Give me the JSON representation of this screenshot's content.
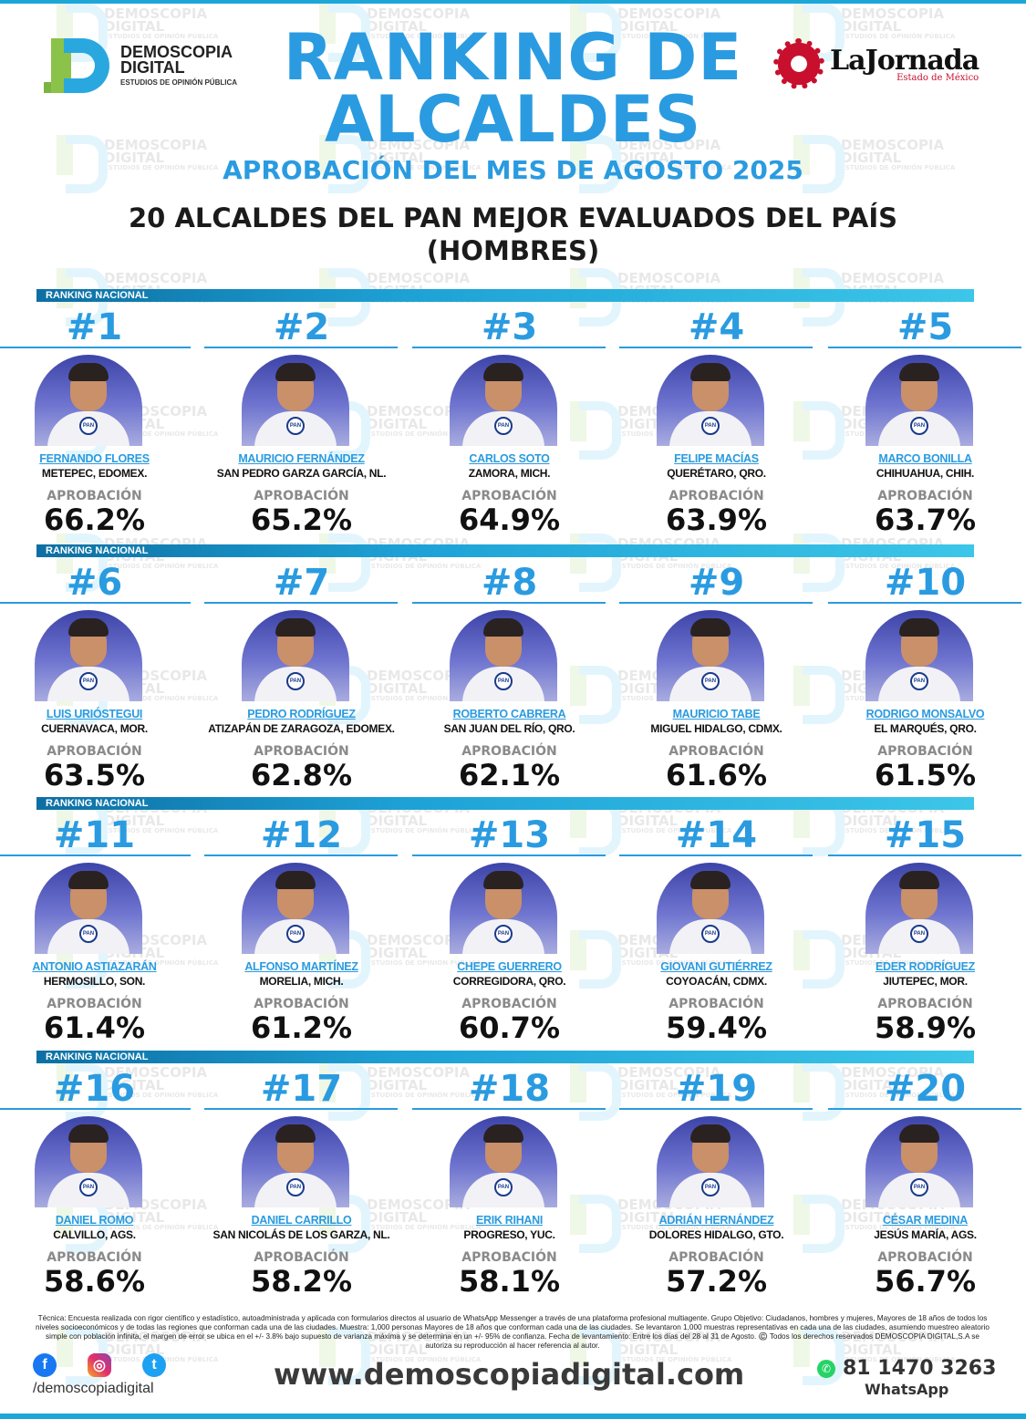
{
  "header": {
    "brand_name_line1": "DEMOSCOPIA",
    "brand_name_line2": "DIGITAL",
    "brand_tagline": "ESTUDIOS DE OPINIÓN PÚBLICA",
    "partner_name": "LaJornada",
    "partner_region": "Estado de México",
    "title_line1": "RANKING DE",
    "title_line2": "ALCALDES",
    "subtitle": "APROBACIÓN DEL MES DE AGOSTO 2025",
    "heading_line1": "20 ALCALDES DEL PAN MEJOR EVALUADOS DEL PAÍS",
    "heading_line2": "(HOMBRES)"
  },
  "section_label": "RANKING NACIONAL",
  "approval_label": "APROBACIÓN",
  "party_badge": "PAN",
  "mayors": [
    {
      "rank": "#1",
      "name": "FERNANDO FLORES",
      "city": "METEPEC, EDOMEX.",
      "approval": "66.2%"
    },
    {
      "rank": "#2",
      "name": "MAURICIO FERNÁNDEZ",
      "city": "SAN PEDRO GARZA GARCÍA, NL.",
      "approval": "65.2%"
    },
    {
      "rank": "#3",
      "name": "CARLOS SOTO",
      "city": "ZAMORA, MICH.",
      "approval": "64.9%"
    },
    {
      "rank": "#4",
      "name": "FELIPE MACÍAS",
      "city": "QUERÉTARO, QRO.",
      "approval": "63.9%"
    },
    {
      "rank": "#5",
      "name": "MARCO BONILLA",
      "city": "CHIHUAHUA, CHIH.",
      "approval": "63.7%"
    },
    {
      "rank": "#6",
      "name": "LUIS URIÓSTEGUI",
      "city": "CUERNAVACA, MOR.",
      "approval": "63.5%"
    },
    {
      "rank": "#7",
      "name": "PEDRO RODRÍGUEZ",
      "city": "ATIZAPÁN DE ZARAGOZA, EDOMEX.",
      "approval": "62.8%"
    },
    {
      "rank": "#8",
      "name": "ROBERTO CABRERA",
      "city": "SAN JUAN DEL RÍO, QRO.",
      "approval": "62.1%"
    },
    {
      "rank": "#9",
      "name": "MAURICIO TABE",
      "city": "MIGUEL HIDALGO, CDMX.",
      "approval": "61.6%"
    },
    {
      "rank": "#10",
      "name": "RODRIGO MONSALVO",
      "city": "EL MARQUÉS, QRO.",
      "approval": "61.5%"
    },
    {
      "rank": "#11",
      "name": "ANTONIO ASTIAZARÁN",
      "city": "HERMOSILLO, SON.",
      "approval": "61.4%"
    },
    {
      "rank": "#12",
      "name": "ALFONSO MARTÍNEZ",
      "city": "MORELIA, MICH.",
      "approval": "61.2%"
    },
    {
      "rank": "#13",
      "name": "CHEPE GUERRERO",
      "city": "CORREGIDORA, QRO.",
      "approval": "60.7%"
    },
    {
      "rank": "#14",
      "name": "GIOVANI GUTIÉRREZ",
      "city": "COYOACÁN, CDMX.",
      "approval": "59.4%"
    },
    {
      "rank": "#15",
      "name": "EDER RODRÍGUEZ",
      "city": "JIUTEPEC, MOR.",
      "approval": "58.9%"
    },
    {
      "rank": "#16",
      "name": "DANIEL ROMO",
      "city": "CALVILLO, AGS.",
      "approval": "58.6%"
    },
    {
      "rank": "#17",
      "name": "DANIEL CARRILLO",
      "city": "SAN NICOLÁS DE LOS GARZA, NL.",
      "approval": "58.2%"
    },
    {
      "rank": "#18",
      "name": "ERIK RIHANI",
      "city": "PROGRESO, YUC.",
      "approval": "58.1%"
    },
    {
      "rank": "#19",
      "name": "ADRIÁN HERNÁNDEZ",
      "city": "DOLORES HIDALGO, GTO.",
      "approval": "57.2%"
    },
    {
      "rank": "#20",
      "name": "CÉSAR MEDINA",
      "city": "JESÚS MARÍA, AGS.",
      "approval": "56.7%"
    }
  ],
  "footer": {
    "technical_note": "Técnica: Encuesta realizada con rigor científico y estadístico, autoadministrada y aplicada con formularios directos al usuario de WhatsApp Messenger a través de una plataforma profesional multiagente. Grupo Objetivo: Ciudadanos, hombres y mujeres, Mayores de 18 años de todos los niveles socioeconómicos y de todas las regiones que conforman cada una de las ciudades. Muestra: 1,000 personas Mayores de 18 años que conforman cada una de las ciudades. Se levantaron 1,000 muestras representativas en cada una de las ciudades, asumiendo muestreo aleatorio simple con población infinita, el margen de error se ubica en el +/- 3.8% bajo supuesto de varianza máxima y se determina en un +/- 95% de confianza. Fecha de levantamiento: Entre los días del 28 al 31 de Agosto. ©️ Todos los derechos reservados DEMOSCOPIA DIGITAL,S.A se autoriza su reproducción al hacer referencia al autor.",
    "social_handle": "/demoscopiadigital",
    "website": "www.demoscopiadigital.com",
    "phone": "81 1470 3263",
    "phone_label": "WhatsApp",
    "icons": [
      "facebook-icon",
      "instagram-icon",
      "twitter-icon",
      "whatsapp-icon"
    ]
  },
  "colors": {
    "accent_blue": "#2a9be0",
    "bar_start": "#0d6fa3",
    "bar_end": "#3cc6e8",
    "photo_bg": "#3d44a8",
    "partner_red": "#c8102e"
  }
}
